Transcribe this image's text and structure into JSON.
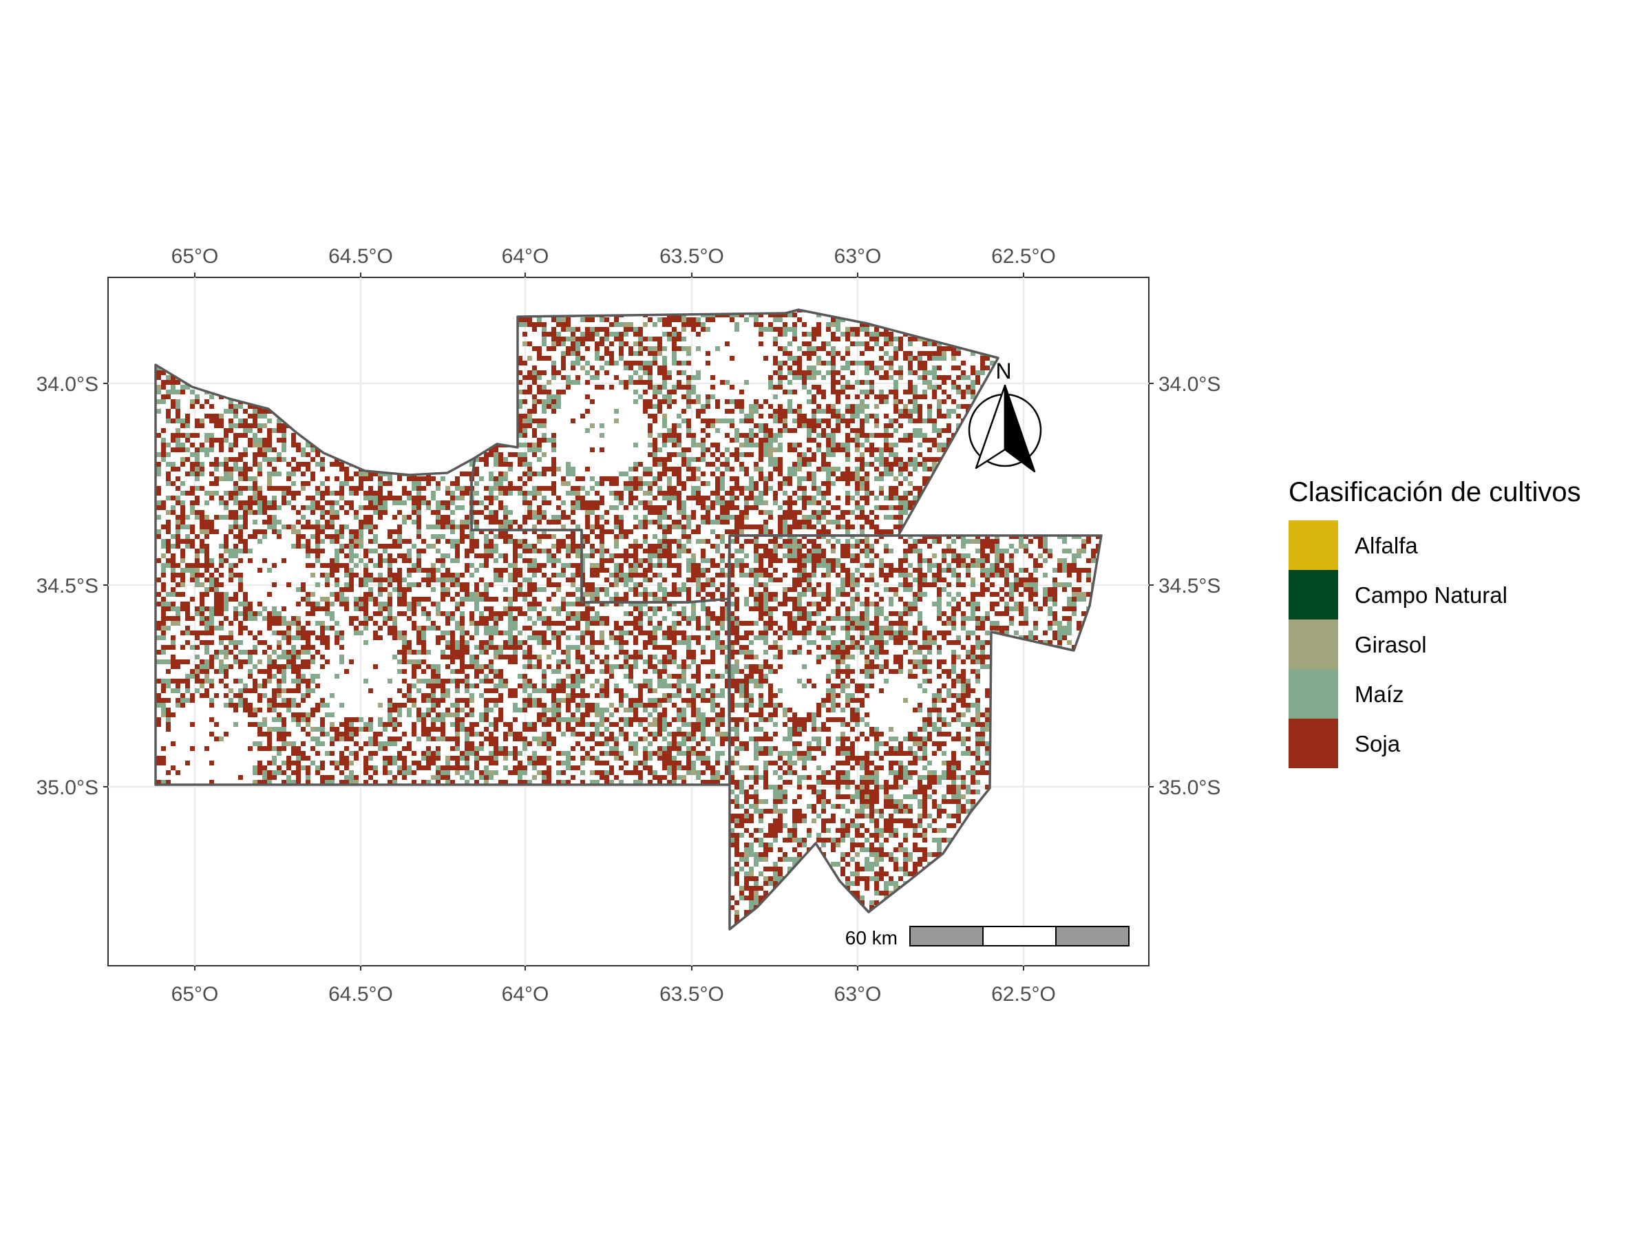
{
  "map": {
    "x_ticks": [
      "65°O",
      "64.5°O",
      "64°O",
      "63.5°O",
      "63°O",
      "62.5°O"
    ],
    "y_ticks": [
      "34.0°S",
      "34.5°S",
      "35.0°S"
    ],
    "north_label": "N",
    "scale_label": "60 km",
    "extent": {
      "lon": [
        -65.26,
        -62.14
      ],
      "lat": [
        -35.44,
        -33.77
      ]
    },
    "grid": true
  },
  "legend": {
    "title": "Clasificación de cultivos",
    "items": [
      {
        "label": "Alfalfa",
        "color": "#D9B70F"
      },
      {
        "label": "Campo Natural",
        "color": "#034A22"
      },
      {
        "label": "Girasol",
        "color": "#A3A57D"
      },
      {
        "label": "Maíz",
        "color": "#84AA8E"
      },
      {
        "label": "Soja",
        "color": "#982C16"
      }
    ]
  },
  "colors": {
    "border": "#595959",
    "grid": "#ebebeb",
    "panel_border": "#333333"
  }
}
